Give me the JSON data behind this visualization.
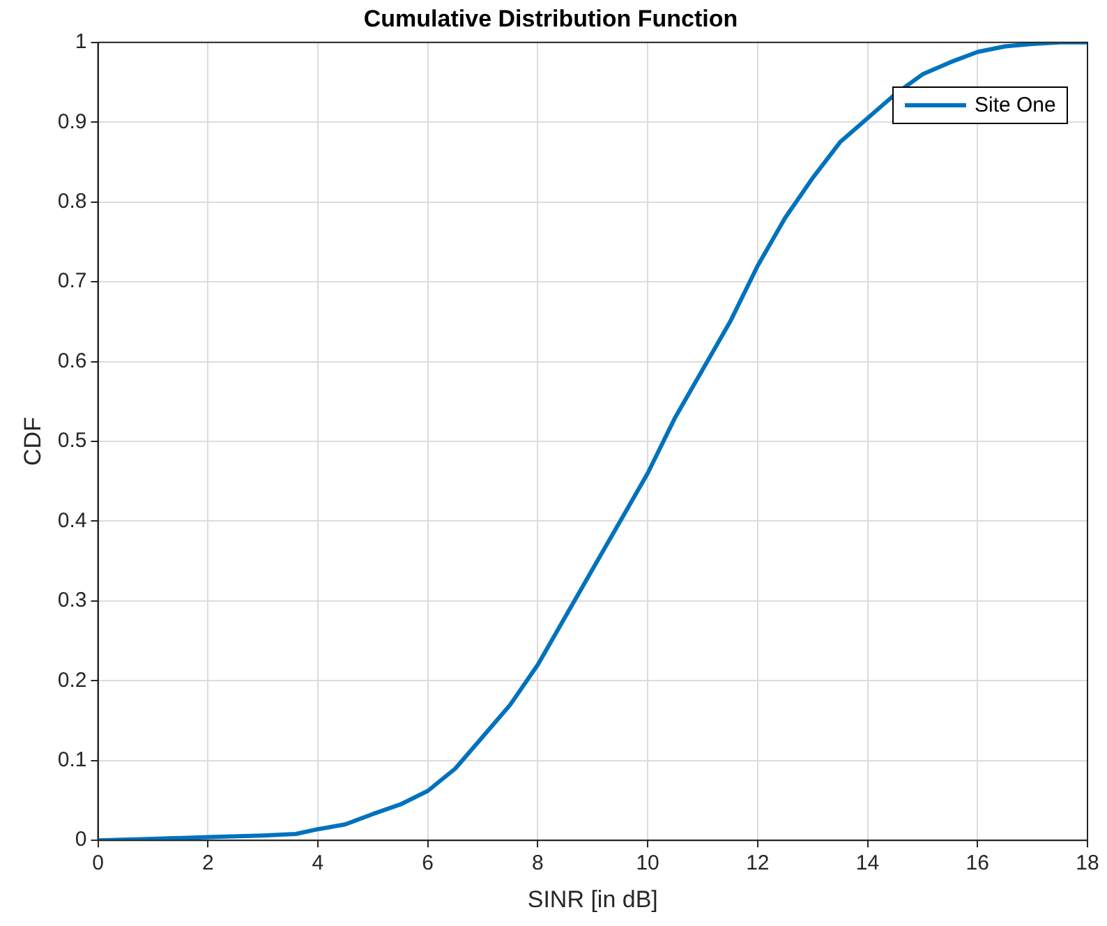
{
  "chart_data": {
    "type": "line",
    "title": "Cumulative Distribution Function",
    "xlabel": "SINR [in dB]",
    "ylabel": "CDF",
    "xlim": [
      0,
      18
    ],
    "xticks": [
      0,
      2,
      4,
      6,
      8,
      10,
      12,
      14,
      16,
      18
    ],
    "ylim": [
      0,
      1
    ],
    "yticks": [
      0,
      0.1,
      0.2,
      0.3,
      0.4,
      0.5,
      0.6,
      0.7,
      0.8,
      0.9,
      1
    ],
    "grid": true,
    "legend": "top right",
    "marker": "none",
    "line_style": "solid",
    "series": [
      {
        "name": "Site One",
        "color": "#0072bd",
        "x": [
          0,
          1,
          2,
          3,
          3.6,
          4,
          4.5,
          5,
          5.5,
          6,
          6.5,
          7,
          7.5,
          8,
          8.5,
          9,
          9.5,
          10,
          10.5,
          11,
          11.5,
          12,
          12.5,
          13,
          13.5,
          14,
          14.5,
          15,
          15.5,
          16,
          16.5,
          17,
          17.5,
          18
        ],
        "values": [
          0,
          0.002,
          0.004,
          0.006,
          0.008,
          0.014,
          0.02,
          0.033,
          0.045,
          0.062,
          0.09,
          0.13,
          0.17,
          0.22,
          0.28,
          0.34,
          0.4,
          0.46,
          0.53,
          0.59,
          0.65,
          0.72,
          0.78,
          0.83,
          0.875,
          0.905,
          0.935,
          0.96,
          0.975,
          0.988,
          0.995,
          0.998,
          1,
          1
        ]
      }
    ]
  }
}
